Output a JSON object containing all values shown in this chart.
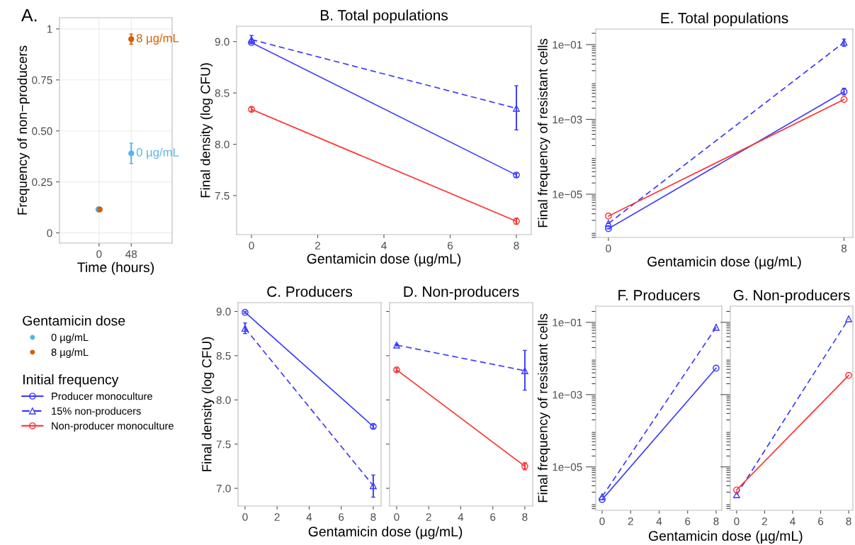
{
  "chart_data": [
    {
      "type": "scatter",
      "title": "A.",
      "xlabel": "Time (hours)",
      "ylabel": "Frequency of non−producers",
      "legend_title": "Gentamicin dose",
      "legend": "bottom",
      "grid": true,
      "marker": "circle",
      "xlim": [
        -59,
        109
      ],
      "xticks": [
        0,
        48
      ],
      "ylim": [
        -0.05,
        1.055
      ],
      "yticks": [
        0,
        {
          "value": 0.25,
          "label": "0.25"
        },
        {
          "value": 0.5,
          "label": "0.50"
        },
        {
          "value": 0.75,
          "label": "0.75"
        },
        1
      ],
      "series": [
        {
          "name": "0 µg/mL",
          "color": "#56b4e9",
          "x": [
            -1,
            48
          ],
          "values": [
            0.115,
            0.39
          ],
          "errors": [
            null,
            [
              0.34,
              0.44
            ]
          ]
        },
        {
          "name": "8 µg/mL",
          "color": "#d55e00",
          "x": [
            1,
            48
          ],
          "values": [
            0.115,
            0.95
          ],
          "errors": [
            null,
            [
              0.925,
              0.975
            ]
          ]
        }
      ],
      "annotations": [
        {
          "text": "8 µg/mL",
          "x": 48,
          "y": 0.95
        },
        {
          "text": "0 µg/mL",
          "x": 48,
          "y": 0.39
        }
      ]
    },
    {
      "type": "line",
      "title": "B. Total populations",
      "xlabel": "Gentamicin dose (µg/mL)",
      "ylabel": "Final density (log CFU)",
      "legend_title": "Initial frequency",
      "legend": "bottom left",
      "xlim": [
        -0.45,
        8.45
      ],
      "xticks": [
        0,
        2,
        4,
        6,
        8
      ],
      "ylim": [
        7.12,
        9.15
      ],
      "yticks": [
        {
          "value": 7.5,
          "label": "7.5"
        },
        {
          "value": 8.0,
          "label": "8.0"
        },
        {
          "value": 8.5,
          "label": "8.5"
        },
        {
          "value": 9.0,
          "label": "9.0"
        }
      ],
      "series": [
        {
          "name": "Producer monoculture",
          "color": "#3a3aff",
          "marker": "circle",
          "line_style": "solid",
          "x": [
            0,
            8
          ],
          "values": [
            8.99,
            7.7
          ],
          "errors": [
            0.01,
            0.02
          ]
        },
        {
          "name": "15% non-producers",
          "color": "#3a3aff",
          "marker": "triangle",
          "line_style": "dashed",
          "x": [
            0,
            8
          ],
          "values": [
            9.02,
            8.35
          ],
          "errors": [
            0.04,
            [
              8.14,
              8.57
            ]
          ]
        },
        {
          "name": "Non-producer monoculture",
          "color": "#ff3030",
          "marker": "circle",
          "line_style": "solid",
          "x": [
            0,
            8
          ],
          "values": [
            8.34,
            7.25
          ],
          "errors": [
            0.02,
            0.03
          ]
        }
      ]
    },
    {
      "type": "line",
      "title": "E. Total populations",
      "xlabel": "Gentamicin dose (µg/mL)",
      "ylabel": "Final frequency of resistant cells",
      "log": "y",
      "xlim": [
        -0.43,
        8.3
      ],
      "xticks": [
        0,
        8
      ],
      "ylim": [
        7e-07,
        0.26
      ],
      "yticks": [
        {
          "value": 1e-05,
          "label": "1e−05"
        },
        {
          "value": 0.001,
          "label": "1e−03"
        },
        {
          "value": 0.1,
          "label": "1e−01"
        }
      ],
      "series": [
        {
          "color": "#3a3aff",
          "marker": "circle",
          "line_style": "solid",
          "x": [
            0,
            8
          ],
          "values": [
            1.2e-06,
            0.0055
          ],
          "errors": [
            null,
            [
              0.0045,
              0.0068
            ]
          ]
        },
        {
          "color": "#3a3aff",
          "marker": "triangle",
          "line_style": "dashed",
          "x": [
            0,
            8
          ],
          "values": [
            1.65e-06,
            0.115
          ],
          "errors": [
            null,
            [
              0.09,
              0.14
            ]
          ]
        },
        {
          "color": "#ff3030",
          "marker": "circle",
          "line_style": "solid",
          "x": [
            0,
            8
          ],
          "values": [
            2.6e-06,
            0.0034
          ]
        }
      ]
    },
    {
      "type": "line",
      "title": "C. Producers",
      "xlabel": "Gentamicin dose (µg/mL)",
      "ylabel": "Final density (log CFU)",
      "xlim": [
        -0.44,
        8.49
      ],
      "xticks": [
        0,
        2,
        4,
        6,
        8
      ],
      "ylim": [
        6.8,
        9.1
      ],
      "yticks": [
        {
          "value": 7.0,
          "label": "7.0"
        },
        {
          "value": 7.5,
          "label": "7.5"
        },
        {
          "value": 8.0,
          "label": "8.0"
        },
        {
          "value": 8.5,
          "label": "8.5"
        },
        {
          "value": 9.0,
          "label": "9.0"
        }
      ],
      "series": [
        {
          "color": "#3a3aff",
          "marker": "circle",
          "line_style": "solid",
          "x": [
            0,
            8
          ],
          "values": [
            8.99,
            7.7
          ],
          "errors": [
            0.01,
            0.02
          ]
        },
        {
          "color": "#3a3aff",
          "marker": "triangle",
          "line_style": "dashed",
          "x": [
            0,
            8
          ],
          "values": [
            8.81,
            7.03
          ],
          "errors": [
            0.06,
            [
              6.9,
              7.15
            ]
          ]
        }
      ]
    },
    {
      "type": "line",
      "title": "D. Non-producers",
      "tick_labels": "x",
      "xlim": [
        -0.44,
        8.49
      ],
      "xticks": [
        0,
        2,
        4,
        6,
        8
      ],
      "ylim": [
        6.8,
        9.1
      ],
      "yticks": [
        {
          "value": 7.0,
          "label": null
        },
        {
          "value": 7.5,
          "label": null
        },
        {
          "value": 8.0,
          "label": null
        },
        {
          "value": 8.5,
          "label": null
        },
        {
          "value": 9.0,
          "label": null
        }
      ],
      "series": [
        {
          "color": "#3a3aff",
          "marker": "triangle",
          "line_style": "dashed",
          "x": [
            0,
            8
          ],
          "values": [
            8.62,
            8.33
          ],
          "errors": [
            0.01,
            [
              8.11,
              8.56
            ]
          ]
        },
        {
          "color": "#ff3030",
          "marker": "circle",
          "line_style": "solid",
          "x": [
            0,
            8
          ],
          "values": [
            8.34,
            7.25
          ],
          "errors": [
            0.02,
            0.04
          ]
        }
      ]
    },
    {
      "type": "line",
      "title": "F. Producers",
      "xlabel": "Gentamicin dose (µg/mL)",
      "ylabel": "Final frequency of resistant cells",
      "log": "y",
      "xlim": [
        -0.45,
        8.4
      ],
      "xticks": [
        0,
        2,
        4,
        6,
        8
      ],
      "ylim": [
        6.3e-07,
        0.28
      ],
      "yticks": [
        {
          "value": 1e-05,
          "label": "1e−05"
        },
        {
          "value": 0.001,
          "label": "1e−03"
        },
        {
          "value": 0.1,
          "label": "1e−01"
        }
      ],
      "series": [
        {
          "color": "#3a3aff",
          "marker": "circle",
          "line_style": "solid",
          "x": [
            0,
            8
          ],
          "values": [
            1.25e-06,
            0.0054
          ]
        },
        {
          "color": "#3a3aff",
          "marker": "triangle",
          "line_style": "dashed",
          "x": [
            0,
            8
          ],
          "values": [
            1.5e-06,
            0.073
          ]
        }
      ]
    },
    {
      "type": "line",
      "title": "G. Non-producers",
      "tick_labels": "x",
      "log": "y",
      "xlim": [
        -0.45,
        8.3
      ],
      "xticks": [
        0,
        2,
        4,
        6,
        8
      ],
      "ylim": [
        6.3e-07,
        0.28
      ],
      "yticks": [
        {
          "value": 1e-05,
          "label": null
        },
        {
          "value": 0.001,
          "label": null
        },
        {
          "value": 0.1,
          "label": null
        }
      ],
      "series": [
        {
          "color": "#3a3aff",
          "marker": "triangle",
          "line_style": "dashed",
          "x": [
            0,
            8
          ],
          "values": [
            1.7e-06,
            0.125
          ]
        },
        {
          "color": "#ff3030",
          "marker": "circle",
          "line_style": "solid",
          "x": [
            0,
            8
          ],
          "values": [
            2.3e-06,
            0.0034
          ]
        }
      ]
    }
  ]
}
